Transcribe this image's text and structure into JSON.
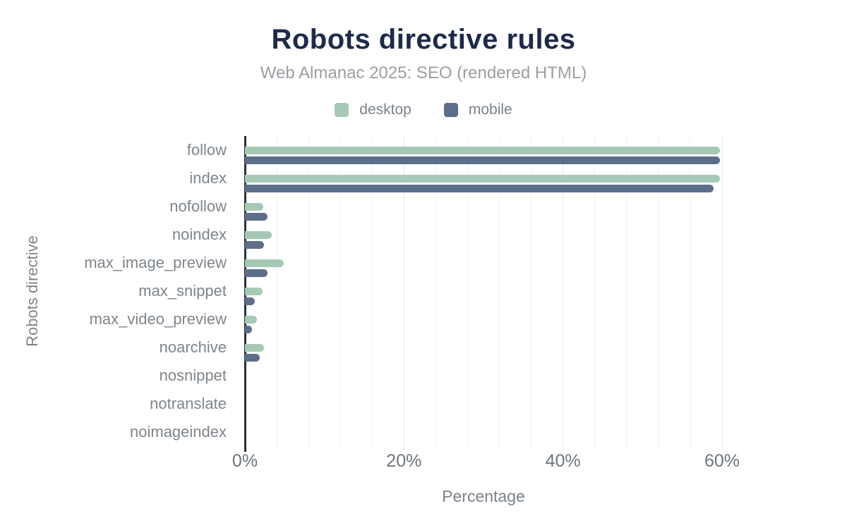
{
  "chart_data": {
    "type": "bar",
    "orientation": "horizontal",
    "title": "Robots directive rules",
    "subtitle": "Web Almanac 2025: SEO (rendered HTML)",
    "xlabel": "Percentage",
    "ylabel": "Robots directive",
    "xlim": [
      0,
      60
    ],
    "x_tick_values": [
      0,
      20,
      40,
      60
    ],
    "x_tick_labels": [
      "0%",
      "20%",
      "40%",
      "60%"
    ],
    "minor_grid_step": 4,
    "grid": true,
    "legend_position": "top",
    "categories": [
      "follow",
      "index",
      "nofollow",
      "noindex",
      "max_image_preview",
      "max_snippet",
      "max_video_preview",
      "noarchive",
      "nosnippet",
      "notranslate",
      "noimageindex"
    ],
    "series": [
      {
        "name": "desktop",
        "color": "#a6c9b6",
        "values": [
          59.7,
          59.7,
          2.3,
          3.4,
          4.9,
          2.2,
          1.5,
          2.4,
          0,
          0,
          0
        ]
      },
      {
        "name": "mobile",
        "color": "#5c6e8a",
        "values": [
          59.7,
          58.9,
          2.8,
          2.4,
          2.8,
          1.2,
          0.9,
          1.9,
          0,
          0,
          0
        ]
      }
    ]
  },
  "colors": {
    "title": "#1d2a4b",
    "subtitle": "#9a9fa4",
    "legend_text": "#7b828a",
    "category_text": "#7e858c",
    "axis_tick_text": "#6e757c",
    "axis_line": "#2d3238",
    "grid_minor": "#f2f2f2",
    "grid_major": "#e7e7e7",
    "background": "#ffffff"
  }
}
